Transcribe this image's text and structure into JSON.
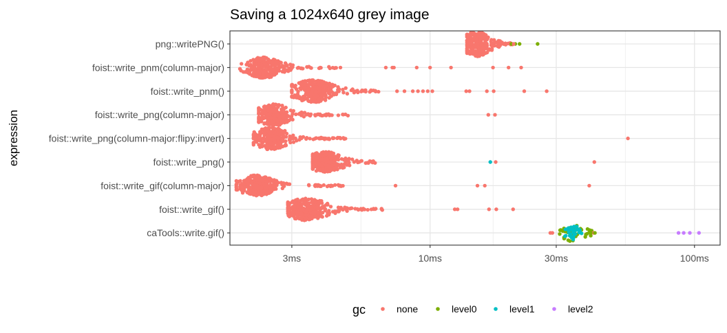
{
  "chart_data": {
    "type": "scatter",
    "title": "Saving a 1024x640 grey image",
    "xlabel": "",
    "ylabel": "expression",
    "x_scale": "log10",
    "x_unit": "ms",
    "xlim": [
      1.75,
      125
    ],
    "x_ticks": [
      {
        "value": 3,
        "label": "3ms"
      },
      {
        "value": 10,
        "label": "10ms"
      },
      {
        "value": 30,
        "label": "30ms"
      },
      {
        "value": 100,
        "label": "100ms"
      }
    ],
    "categories": [
      "png::writePNG()",
      "foist::write_pnm(column-major)",
      "foist::write_pnm()",
      "foist::write_png(column-major)",
      "foist::write_png(column-major:flipy:invert)",
      "foist::write_png()",
      "foist::write_gif(column-major)",
      "foist::write_gif()",
      "caTools::write.gif()"
    ],
    "grid": true,
    "legend": {
      "title": "gc",
      "position": "bottom",
      "entries": [
        {
          "name": "none",
          "color": "#F8766D"
        },
        {
          "name": "level0",
          "color": "#7CAE00"
        },
        {
          "name": "level1",
          "color": "#00BFC4"
        },
        {
          "name": "level2",
          "color": "#C77CFF"
        }
      ]
    },
    "bees": [
      {
        "row": 0,
        "gc": "none",
        "min": 13.8,
        "max": 20.5,
        "center": 15.0,
        "width": 17,
        "spread": 0.04,
        "n": 260
      },
      {
        "row": 1,
        "gc": "none",
        "min": 1.9,
        "max": 4.6,
        "center": 2.35,
        "width": 14,
        "spread": 0.05,
        "n": 300
      },
      {
        "row": 2,
        "gc": "none",
        "min": 3.0,
        "max": 6.6,
        "center": 3.6,
        "width": 15,
        "spread": 0.06,
        "n": 300
      },
      {
        "row": 3,
        "gc": "none",
        "min": 2.25,
        "max": 4.9,
        "center": 2.55,
        "width": 15,
        "spread": 0.05,
        "n": 270
      },
      {
        "row": 4,
        "gc": "none",
        "min": 2.15,
        "max": 4.9,
        "center": 2.5,
        "width": 15,
        "spread": 0.05,
        "n": 270
      },
      {
        "row": 5,
        "gc": "none",
        "min": 3.6,
        "max": 6.2,
        "center": 4.0,
        "width": 14,
        "spread": 0.05,
        "n": 280
      },
      {
        "row": 6,
        "gc": "none",
        "min": 1.85,
        "max": 4.7,
        "center": 2.2,
        "width": 14,
        "spread": 0.05,
        "n": 290
      },
      {
        "row": 7,
        "gc": "none",
        "min": 2.9,
        "max": 6.6,
        "center": 3.4,
        "width": 15,
        "spread": 0.06,
        "n": 300
      },
      {
        "row": 8,
        "gc": "level0",
        "min": 30.0,
        "max": 41.0,
        "center": 34.5,
        "width": 11,
        "spread": 0.04,
        "n": 45
      },
      {
        "row": 8,
        "gc": "level1",
        "min": 32.0,
        "max": 38.0,
        "center": 34.5,
        "width": 10,
        "spread": 0.03,
        "n": 30
      }
    ],
    "points": [
      {
        "row": 0,
        "x": 20.3,
        "gc": "level0"
      },
      {
        "row": 0,
        "x": 21.0,
        "gc": "level0"
      },
      {
        "row": 0,
        "x": 21.8,
        "gc": "level0"
      },
      {
        "row": 0,
        "x": 25.5,
        "gc": "level0"
      },
      {
        "row": 0,
        "x": 20.7,
        "gc": "none"
      },
      {
        "row": 1,
        "x": 6.8,
        "gc": "none"
      },
      {
        "row": 1,
        "x": 7.2,
        "gc": "none"
      },
      {
        "row": 1,
        "x": 7.3,
        "gc": "none"
      },
      {
        "row": 1,
        "x": 8.9,
        "gc": "none"
      },
      {
        "row": 1,
        "x": 10.0,
        "gc": "none"
      },
      {
        "row": 1,
        "x": 12.0,
        "gc": "none"
      },
      {
        "row": 1,
        "x": 17.3,
        "gc": "none"
      },
      {
        "row": 1,
        "x": 19.8,
        "gc": "none"
      },
      {
        "row": 1,
        "x": 22.1,
        "gc": "none"
      },
      {
        "row": 2,
        "x": 7.5,
        "gc": "none"
      },
      {
        "row": 2,
        "x": 8.0,
        "gc": "none"
      },
      {
        "row": 2,
        "x": 8.6,
        "gc": "none"
      },
      {
        "row": 2,
        "x": 9.0,
        "gc": "none"
      },
      {
        "row": 2,
        "x": 9.4,
        "gc": "none"
      },
      {
        "row": 2,
        "x": 9.8,
        "gc": "none"
      },
      {
        "row": 2,
        "x": 10.2,
        "gc": "none"
      },
      {
        "row": 2,
        "x": 13.7,
        "gc": "none"
      },
      {
        "row": 2,
        "x": 14.1,
        "gc": "none"
      },
      {
        "row": 2,
        "x": 16.4,
        "gc": "none"
      },
      {
        "row": 2,
        "x": 17.4,
        "gc": "none"
      },
      {
        "row": 2,
        "x": 22.7,
        "gc": "none"
      },
      {
        "row": 2,
        "x": 27.6,
        "gc": "none"
      },
      {
        "row": 3,
        "x": 16.6,
        "gc": "none"
      },
      {
        "row": 3,
        "x": 17.6,
        "gc": "none"
      },
      {
        "row": 4,
        "x": 56.0,
        "gc": "none"
      },
      {
        "row": 5,
        "x": 16.9,
        "gc": "level1"
      },
      {
        "row": 5,
        "x": 17.7,
        "gc": "none"
      },
      {
        "row": 5,
        "x": 41.8,
        "gc": "none"
      },
      {
        "row": 6,
        "x": 7.4,
        "gc": "none"
      },
      {
        "row": 6,
        "x": 15.1,
        "gc": "none"
      },
      {
        "row": 6,
        "x": 16.1,
        "gc": "none"
      },
      {
        "row": 6,
        "x": 40.0,
        "gc": "none"
      },
      {
        "row": 7,
        "x": 12.4,
        "gc": "none"
      },
      {
        "row": 7,
        "x": 12.7,
        "gc": "none"
      },
      {
        "row": 7,
        "x": 16.7,
        "gc": "none"
      },
      {
        "row": 7,
        "x": 17.8,
        "gc": "none"
      },
      {
        "row": 7,
        "x": 20.6,
        "gc": "none"
      },
      {
        "row": 8,
        "x": 28.5,
        "gc": "none"
      },
      {
        "row": 8,
        "x": 29.0,
        "gc": "none"
      },
      {
        "row": 8,
        "x": 41.5,
        "gc": "none"
      },
      {
        "row": 8,
        "x": 42.0,
        "gc": "level0"
      },
      {
        "row": 8,
        "x": 40.5,
        "gc": "level0"
      },
      {
        "row": 8,
        "x": 87.0,
        "gc": "level2"
      },
      {
        "row": 8,
        "x": 91.0,
        "gc": "level2"
      },
      {
        "row": 8,
        "x": 96.0,
        "gc": "level2"
      },
      {
        "row": 8,
        "x": 104.0,
        "gc": "level2"
      }
    ]
  }
}
